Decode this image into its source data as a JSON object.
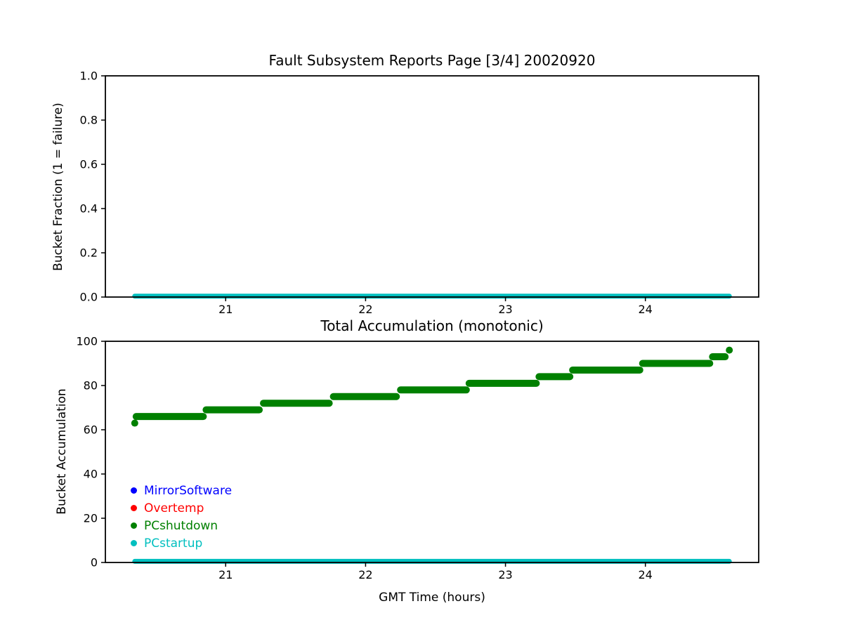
{
  "figure": {
    "background": "#ffffff",
    "text_color": "#000000",
    "axis_color": "#000000"
  },
  "chart_data": [
    {
      "type": "line",
      "title": "Fault Subsystem Reports Page [3/4] 20020920",
      "xlabel": "",
      "ylabel": "Bucket Fraction (1 = failure)",
      "xlim": [
        20.14,
        24.81
      ],
      "ylim": [
        0,
        1
      ],
      "xticks": [
        21,
        22,
        23,
        24
      ],
      "xtick_labels": [
        "21",
        "22",
        "23",
        "24"
      ],
      "yticks": [
        0,
        0.2,
        0.4,
        0.6,
        0.8,
        1
      ],
      "ytick_labels": [
        "0.0",
        "0.2",
        "0.4",
        "0.6",
        "0.8",
        "1.0"
      ],
      "grid": false,
      "legend_position": "none",
      "series": [
        {
          "name": "PCstartup",
          "color": "#00bfbf",
          "line_width": 7,
          "segments": [
            {
              "x1": 20.35,
              "x2": 24.6,
              "y": 0.004
            }
          ]
        }
      ]
    },
    {
      "type": "line",
      "title": "Total Accumulation (monotonic)",
      "xlabel": "GMT Time (hours)",
      "ylabel": "Bucket Accumulation",
      "xlim": [
        20.14,
        24.81
      ],
      "ylim": [
        0,
        100
      ],
      "xticks": [
        21,
        22,
        23,
        24
      ],
      "xtick_labels": [
        "21",
        "22",
        "23",
        "24"
      ],
      "yticks": [
        0,
        20,
        40,
        60,
        80,
        100
      ],
      "ytick_labels": [
        "0",
        "20",
        "40",
        "60",
        "80",
        "100"
      ],
      "grid": false,
      "legend_position": "lower-left-inside",
      "series": [
        {
          "name": "PCshutdown",
          "color": "#008000",
          "line_width": 10,
          "segments": [
            {
              "x1": 20.35,
              "x2": 20.35,
              "y": 63
            },
            {
              "x1": 20.36,
              "x2": 20.84,
              "y": 66
            },
            {
              "x1": 20.86,
              "x2": 21.24,
              "y": 69
            },
            {
              "x1": 21.27,
              "x2": 21.74,
              "y": 72
            },
            {
              "x1": 21.77,
              "x2": 22.22,
              "y": 75
            },
            {
              "x1": 22.25,
              "x2": 22.72,
              "y": 78
            },
            {
              "x1": 22.74,
              "x2": 23.22,
              "y": 81
            },
            {
              "x1": 23.24,
              "x2": 23.46,
              "y": 84
            },
            {
              "x1": 23.48,
              "x2": 23.96,
              "y": 87
            },
            {
              "x1": 23.98,
              "x2": 24.46,
              "y": 90
            },
            {
              "x1": 24.48,
              "x2": 24.57,
              "y": 93
            },
            {
              "x1": 24.6,
              "x2": 24.6,
              "y": 96
            }
          ]
        },
        {
          "name": "PCstartup",
          "color": "#00bfbf",
          "line_width": 7,
          "segments": [
            {
              "x1": 20.35,
              "x2": 24.6,
              "y": 0.5
            }
          ]
        }
      ],
      "legend": [
        {
          "label": "MirrorSoftware",
          "color": "#0000ff"
        },
        {
          "label": "Overtemp",
          "color": "#ff0000"
        },
        {
          "label": "PCshutdown",
          "color": "#008000"
        },
        {
          "label": "PCstartup",
          "color": "#00bfbf"
        }
      ]
    }
  ]
}
